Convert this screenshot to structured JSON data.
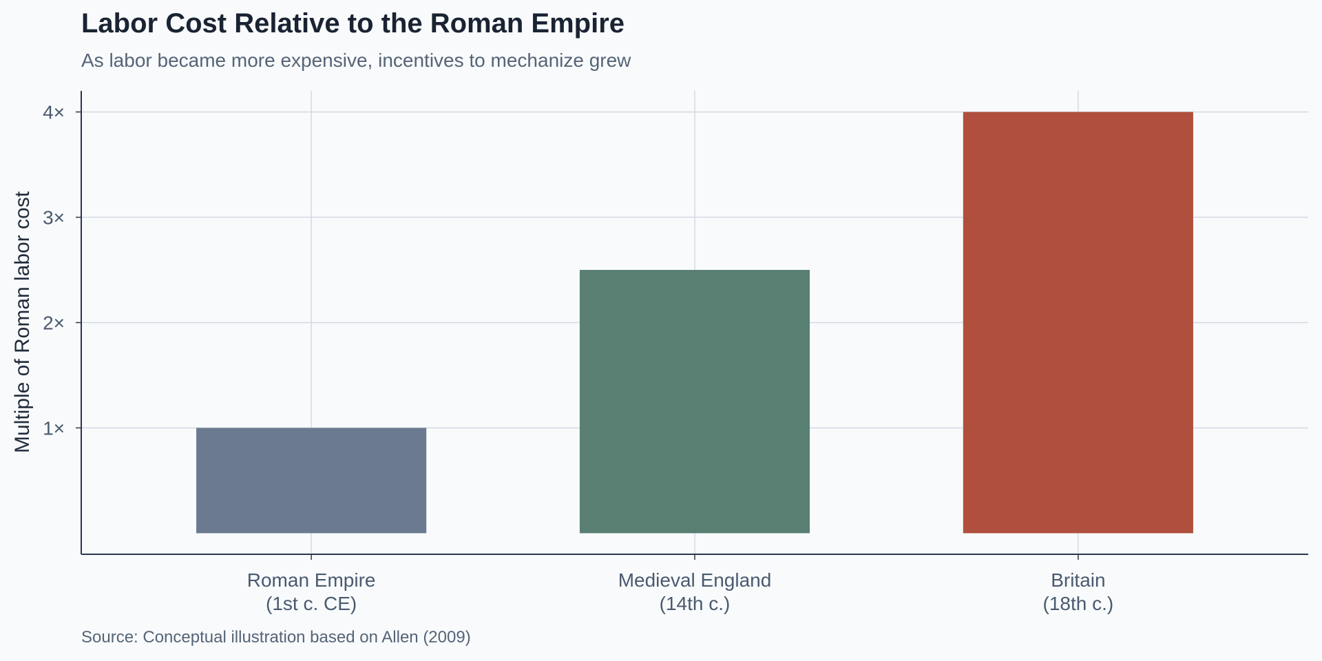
{
  "chart_data": {
    "type": "bar",
    "title": "Labor Cost Relative to the Roman Empire",
    "subtitle": "As labor became more expensive, incentives to mechanize grew",
    "source": "Source: Conceptual illustration based on Allen (2009)",
    "ylabel": "Multiple of Roman labor cost",
    "xlabel": "",
    "categories": [
      [
        "Roman Empire",
        "(1st c. CE)"
      ],
      [
        "Medieval England",
        "(14th c.)"
      ],
      [
        "Britain",
        "(18th c.)"
      ]
    ],
    "values": [
      1.0,
      2.5,
      4.0
    ],
    "colors": [
      "#6b7a8f",
      "#587f72",
      "#b04f3d"
    ],
    "yticks": [
      1,
      2,
      3,
      4
    ],
    "ytick_labels": [
      "1×",
      "2×",
      "3×",
      "4×"
    ],
    "ylim": [
      -0.2,
      4.2
    ],
    "grid": true,
    "legend": "none"
  }
}
